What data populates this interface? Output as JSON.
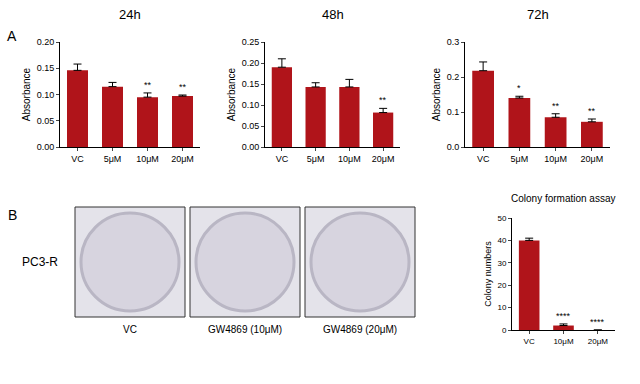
{
  "panel_labels": [
    "A",
    "B"
  ],
  "plates": {
    "row_label": "PC3-R",
    "labels": [
      "VC",
      "GW4869 (10μM)",
      "GW4869 (20μM)"
    ]
  },
  "chart_data": [
    {
      "type": "bar",
      "title": "24h",
      "y_label": "Absorbance",
      "categories": [
        "VC",
        "5μM",
        "10μM",
        "20μM"
      ],
      "values": [
        0.146,
        0.115,
        0.095,
        0.097
      ],
      "errors": [
        0.012,
        0.008,
        0.008,
        0.002
      ],
      "significance": [
        null,
        null,
        "**",
        "**"
      ],
      "color": "#b0141a",
      "ylim": [
        0,
        0.2
      ],
      "yticks": [
        {
          "value": 0,
          "label": "0.00"
        },
        {
          "value": 0.05,
          "label": "0.05"
        },
        {
          "value": 0.1,
          "label": "0.10"
        },
        {
          "value": 0.15,
          "label": "0.15"
        },
        {
          "value": 0.2,
          "label": "0.20"
        }
      ],
      "grid": false
    },
    {
      "type": "bar",
      "title": "48h",
      "y_label": "Absorbance",
      "categories": [
        "VC",
        "5μM",
        "10μM",
        "20μM"
      ],
      "values": [
        0.19,
        0.143,
        0.143,
        0.082
      ],
      "errors": [
        0.02,
        0.01,
        0.018,
        0.01
      ],
      "significance": [
        null,
        null,
        null,
        "**"
      ],
      "color": "#b0141a",
      "ylim": [
        0,
        0.25
      ],
      "yticks": [
        {
          "value": 0,
          "label": "0.00"
        },
        {
          "value": 0.05,
          "label": "0.05"
        },
        {
          "value": 0.1,
          "label": "0.10"
        },
        {
          "value": 0.15,
          "label": "0.15"
        },
        {
          "value": 0.2,
          "label": "0.20"
        },
        {
          "value": 0.25,
          "label": "0.25"
        }
      ],
      "grid": false
    },
    {
      "type": "bar",
      "title": "72h",
      "y_label": "Absorbance",
      "categories": [
        "VC",
        "5μM",
        "10μM",
        "20μM"
      ],
      "values": [
        0.218,
        0.14,
        0.085,
        0.072
      ],
      "errors": [
        0.025,
        0.005,
        0.01,
        0.008
      ],
      "significance": [
        null,
        "*",
        "**",
        "**"
      ],
      "color": "#b0141a",
      "ylim": [
        0,
        0.3
      ],
      "yticks": [
        {
          "value": 0,
          "label": "0.0"
        },
        {
          "value": 0.1,
          "label": "0.1"
        },
        {
          "value": 0.2,
          "label": "0.2"
        },
        {
          "value": 0.3,
          "label": "0.3"
        }
      ],
      "grid": false
    },
    {
      "type": "bar",
      "title": "Colony formation assay",
      "y_label": "Colony numbers",
      "categories": [
        "VC",
        "10μM",
        "20μM"
      ],
      "values": [
        40,
        2,
        0
      ],
      "errors": [
        1,
        0.7,
        0
      ],
      "significance": [
        null,
        "****",
        "****"
      ],
      "color": "#b0141a",
      "ylim": [
        0,
        50
      ],
      "yticks": [
        0,
        10,
        20,
        30,
        40,
        50
      ],
      "grid": false
    }
  ]
}
